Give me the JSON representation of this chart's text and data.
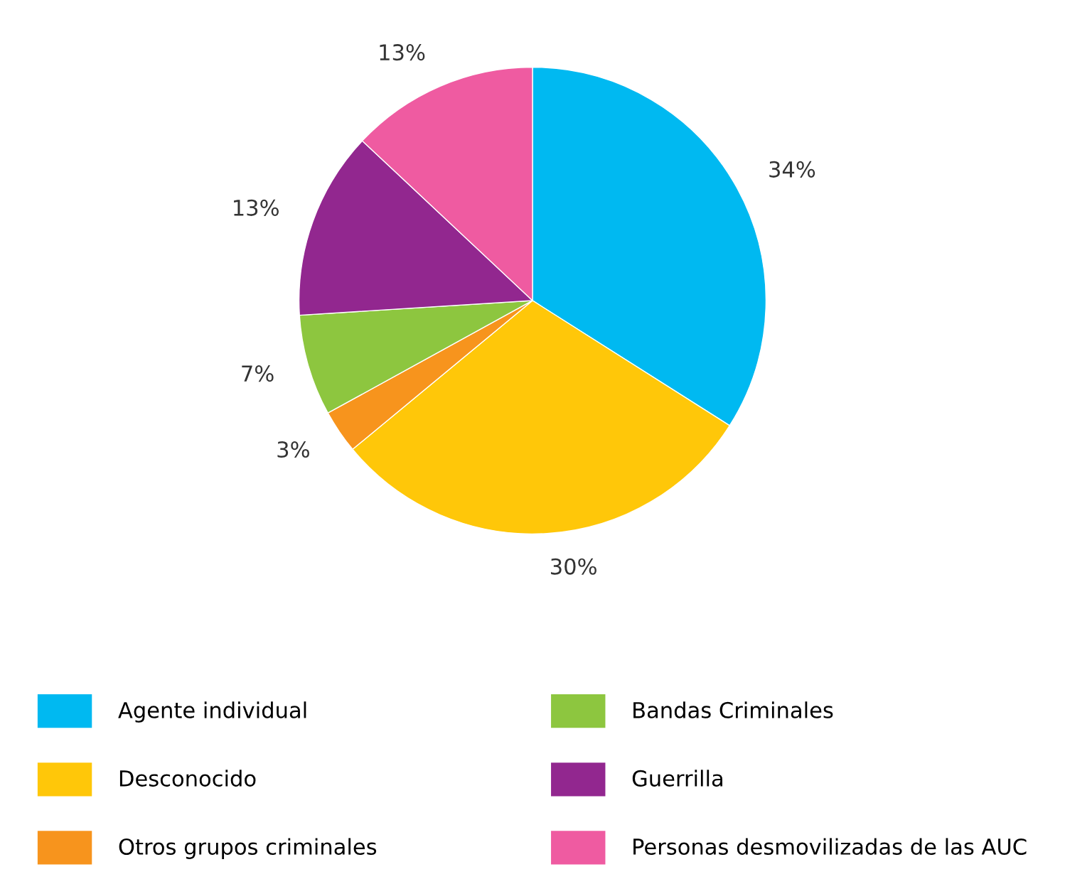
{
  "chart_data": {
    "type": "pie",
    "categories": [
      "Agente individual",
      "Desconocido",
      "Otros grupos criminales",
      "Bandas Criminales",
      "Guerrilla",
      "Personas desmovilizadas de las AUC"
    ],
    "values": [
      34,
      30,
      3,
      7,
      13,
      13
    ],
    "value_labels": [
      "34%",
      "30%",
      "3%",
      "7%",
      "13%",
      "13%"
    ],
    "colors": [
      "#00b9f1",
      "#ffc709",
      "#f7941d",
      "#8dc63f",
      "#92278f",
      "#ef5ba1"
    ],
    "legend": "bottom"
  }
}
